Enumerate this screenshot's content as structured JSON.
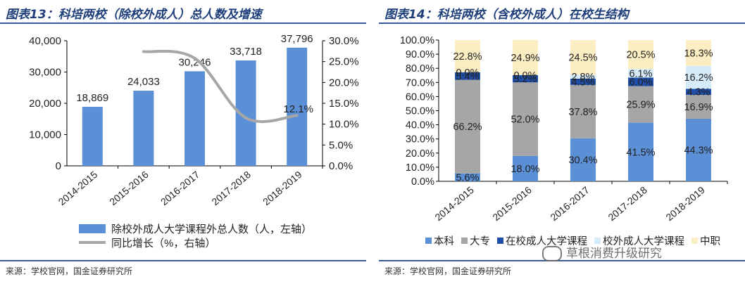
{
  "left": {
    "title": "图表13：科培两校（除校外成人）总人数及增速",
    "source": "来源：学校官网，国金证券研究所"
  },
  "right": {
    "title": "图表14：科培两校（含校外成人）在校生结构",
    "source": "来源：学校官网，国金证券研究所"
  },
  "watermark": "草根消费升级研究",
  "chart_data": [
    {
      "type": "bar",
      "categories": [
        "2014-2015",
        "2015-2016",
        "2016-2017",
        "2017-2018",
        "2018-2019"
      ],
      "series": [
        {
          "name": "除校外成人大学课程外总人数（人，左轴）",
          "type": "bar",
          "axis": "left",
          "values": [
            18869,
            24033,
            30246,
            33718,
            37796
          ],
          "labels": [
            "18,869",
            "24,033",
            "30,246",
            "33,718",
            "37,796"
          ]
        },
        {
          "name": "同比增长（%，右轴）",
          "type": "line",
          "axis": "right",
          "values": [
            null,
            27.4,
            25.8,
            11.5,
            12.1
          ],
          "labels": [
            "",
            "",
            "",
            "",
            "12.1%"
          ]
        }
      ],
      "ylim_left": [
        0,
        40000
      ],
      "yticks_left": [
        "0",
        "10,000",
        "20,000",
        "30,000",
        "40,000"
      ],
      "ylim_right": [
        0,
        30
      ],
      "yticks_right": [
        "0.0%",
        "5.0%",
        "10.0%",
        "15.0%",
        "20.0%",
        "25.0%",
        "30.0%"
      ],
      "grid": false,
      "legend_position": "bottom",
      "colors": {
        "bar": "#5b8fd6",
        "line": "#a6a6a6"
      }
    },
    {
      "type": "bar",
      "stacked": true,
      "categories": [
        "2014-2015",
        "2015-2016",
        "2016-2017",
        "2017-2018",
        "2018-2019"
      ],
      "series": [
        {
          "name": "本科",
          "color": "#5b8fd6",
          "values": [
            5.6,
            18.0,
            30.4,
            41.5,
            44.3
          ],
          "labels": [
            "5.6%",
            "18.0%",
            "30.4%",
            "41.5%",
            "44.3%"
          ]
        },
        {
          "name": "大专",
          "color": "#a6a6a6",
          "values": [
            66.2,
            52.0,
            37.8,
            25.9,
            16.9
          ],
          "labels": [
            "66.2%",
            "52.0%",
            "37.8%",
            "25.9%",
            "16.9%"
          ]
        },
        {
          "name": "在校成人大学课程",
          "color": "#1f4fa8",
          "values": [
            5.4,
            5.2,
            4.5,
            6.0,
            4.3
          ],
          "labels": [
            "5.4%",
            "5.2%",
            "4.5%",
            "6.0%",
            "4.3%"
          ]
        },
        {
          "name": "校外成人大学课程",
          "color": "#d6ebfa",
          "values": [
            0.0,
            0.0,
            2.8,
            6.1,
            16.2
          ],
          "labels": [
            "0.0%",
            "0.0%",
            "2.8%",
            "6.1%",
            "16.2%"
          ]
        },
        {
          "name": "中职",
          "color": "#fbeec3",
          "values": [
            22.8,
            24.9,
            24.5,
            20.5,
            18.3
          ],
          "labels": [
            "22.8%",
            "24.9%",
            "24.5%",
            "20.5%",
            "18.3%"
          ]
        }
      ],
      "ylim": [
        0,
        100
      ],
      "yticks": [
        "0.0%",
        "10.0%",
        "20.0%",
        "30.0%",
        "40.0%",
        "50.0%",
        "60.0%",
        "70.0%",
        "80.0%",
        "90.0%",
        "100.0%"
      ],
      "grid": false,
      "legend_position": "bottom"
    }
  ]
}
